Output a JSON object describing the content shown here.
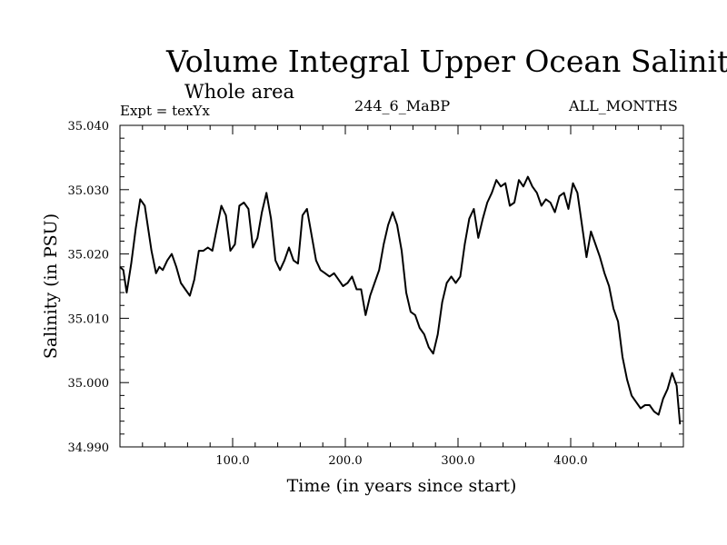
{
  "header": {
    "title": "Volume Integral Upper Ocean Salinity",
    "subtitle": "Whole area",
    "expt": "Expt = texYx",
    "run": "244_6_MaBP",
    "months": "ALL_MONTHS"
  },
  "chart_data": {
    "type": "line",
    "title": "Volume Integral Upper Ocean Salinity",
    "subtitle": "Whole area",
    "xlabel": "Time (in years since start)",
    "ylabel": "Salinity (in PSU)",
    "xlim": [
      0,
      500
    ],
    "ylim": [
      34.99,
      35.04
    ],
    "x_ticks": [
      100,
      200,
      300,
      400
    ],
    "x_tick_labels": [
      "100.0",
      "200.0",
      "300.0",
      "400.0"
    ],
    "y_ticks": [
      34.99,
      35.0,
      35.01,
      35.02,
      35.03,
      35.04
    ],
    "y_tick_labels": [
      "34.990",
      "35.000",
      "35.010",
      "35.020",
      "35.030",
      "35.040"
    ],
    "grid": false,
    "series": [
      {
        "x": [
          0,
          3,
          6,
          10,
          14,
          18,
          22,
          25,
          28,
          32,
          35,
          38,
          42,
          46,
          50,
          54,
          58,
          62,
          66,
          70,
          74,
          78,
          82,
          86,
          90,
          94,
          98,
          102,
          106,
          110,
          114,
          118,
          122,
          126,
          130,
          134,
          138,
          142,
          146,
          150,
          154,
          158,
          162,
          166,
          170,
          174,
          178,
          182,
          186,
          190,
          194,
          198,
          202,
          206,
          210,
          214,
          218,
          222,
          226,
          230,
          234,
          238,
          242,
          246,
          250,
          254,
          258,
          262,
          266,
          270,
          274,
          278,
          282,
          286,
          290,
          294,
          298,
          302,
          306,
          310,
          314,
          318,
          322,
          326,
          330,
          334,
          338,
          342,
          346,
          350,
          354,
          358,
          362,
          366,
          370,
          374,
          378,
          382,
          386,
          390,
          394,
          398,
          402,
          406,
          410,
          414,
          418,
          422,
          426,
          430,
          434,
          438,
          442,
          446,
          450,
          454,
          458,
          462,
          466,
          470,
          474,
          478,
          482,
          486,
          490,
          494,
          497
        ],
        "values": [
          35.018,
          35.0175,
          35.014,
          35.0185,
          35.024,
          35.0285,
          35.0275,
          35.024,
          35.0205,
          35.017,
          35.018,
          35.0175,
          35.019,
          35.02,
          35.018,
          35.0155,
          35.0145,
          35.0135,
          35.016,
          35.0205,
          35.0205,
          35.021,
          35.0205,
          35.024,
          35.0275,
          35.026,
          35.0205,
          35.0215,
          35.0275,
          35.028,
          35.027,
          35.021,
          35.0225,
          35.0265,
          35.0295,
          35.0255,
          35.019,
          35.0175,
          35.019,
          35.021,
          35.019,
          35.0185,
          35.026,
          35.027,
          35.023,
          35.019,
          35.0175,
          35.017,
          35.0165,
          35.017,
          35.016,
          35.015,
          35.0155,
          35.0165,
          35.0145,
          35.0145,
          35.0105,
          35.0135,
          35.0155,
          35.0175,
          35.0215,
          35.0245,
          35.0265,
          35.0245,
          35.0205,
          35.014,
          35.011,
          35.0105,
          35.0085,
          35.0075,
          35.0055,
          35.0045,
          35.0075,
          35.0125,
          35.0155,
          35.0165,
          35.0155,
          35.0165,
          35.0215,
          35.0255,
          35.027,
          35.0225,
          35.0255,
          35.028,
          35.0295,
          35.0315,
          35.0305,
          35.031,
          35.0275,
          35.028,
          35.0315,
          35.0305,
          35.032,
          35.0305,
          35.0295,
          35.0275,
          35.0285,
          35.028,
          35.0265,
          35.029,
          35.0295,
          35.027,
          35.031,
          35.0295,
          35.0245,
          35.0195,
          35.0235,
          35.0215,
          35.0195,
          35.017,
          35.015,
          35.0115,
          35.0095,
          35.004,
          35.0005,
          34.998,
          34.997,
          34.996,
          34.9965,
          34.9965,
          34.9955,
          34.995,
          34.9975,
          34.999,
          35.0015,
          34.9995,
          34.9935
        ]
      }
    ]
  }
}
